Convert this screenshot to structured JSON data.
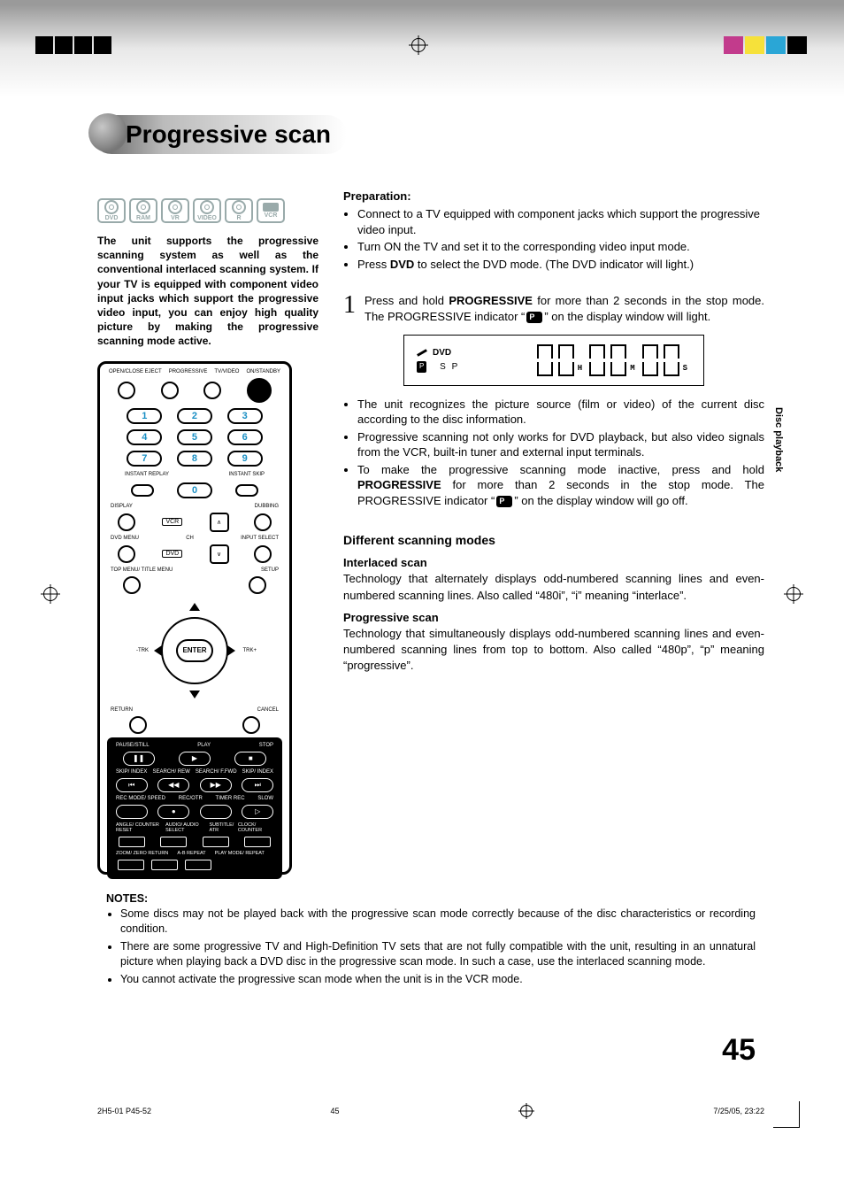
{
  "crop_colors": [
    "#c23b8c",
    "#f6e13a",
    "#2aa6d6",
    "#000000"
  ],
  "title": "Progressive scan",
  "disc_types": [
    "DVD",
    "RAM",
    "VR",
    "VIDEO",
    "R",
    "VCR"
  ],
  "intro": "The unit supports the progressive scanning system as well as the conventional interlaced scanning system. If your TV is equipped with component video input jacks which support the progressive video input, you can enjoy high quality picture by making the progressive scanning mode active.",
  "preparation_heading": "Preparation:",
  "preparation": [
    "Connect to a TV equipped with component jacks which support the progressive video input.",
    "Turn ON the TV and set it to the corresponding video input mode.",
    "Press <b>DVD</b> to select the DVD mode. (The DVD indicator will light.)"
  ],
  "step_num": "1",
  "step_text_a": "Press and hold ",
  "step_text_b": "PROGRESSIVE",
  "step_text_c": " for more than 2 seconds in the stop mode. The PROGRESSIVE indicator “",
  "step_text_d": "” on the display window will light.",
  "display": {
    "dvd": "DVD",
    "p": "P",
    "sp": "S P",
    "h": "H",
    "m": "M",
    "s": "S"
  },
  "after_bullets": [
    "The unit recognizes the picture source (film or video) of the current disc according to the disc information.",
    "Progressive scanning not only works for DVD playback, but also video signals from the VCR, built-in tuner and external input terminals.",
    "To make the progressive scanning mode inactive, press and hold <b>PROGRESSIVE</b> for more than 2 seconds in the stop mode. The PROGRESSIVE indicator “<span class='p-indicator'></span>” on the display window will go off."
  ],
  "modes_heading": "Different scanning modes",
  "interlaced_h": "Interlaced scan",
  "interlaced_p": "Technology that alternately displays odd-numbered scanning lines and even-numbered scanning lines. Also called “480i”, “i” meaning “interlace”.",
  "progressive_h": "Progressive scan",
  "progressive_p": "Technology that simultaneously displays odd-numbered scanning lines and even-numbered scanning lines from top to bottom. Also called “480p”, “p” meaning “progressive”.",
  "side_tab": "Disc playback",
  "notes_h": "NOTES:",
  "notes": [
    "Some discs may not be played back with the progressive scan mode correctly because of the disc characteristics or recording condition.",
    "There are some progressive TV and High-Definition TV sets that are not fully compatible with the unit, resulting in an unnatural picture when playing back a DVD disc in the progressive scan mode. In such a case, use the interlaced scanning mode.",
    "You cannot activate the progressive scan mode when the unit is in the VCR mode."
  ],
  "page_number": "45",
  "footer_left": "2H5-01 P45-52",
  "footer_mid": "45",
  "footer_right": "7/25/05, 23:22",
  "remote": {
    "hdr": [
      "OPEN/CLOSE EJECT",
      "PROGRESSIVE",
      "TV/VIDEO",
      "ON/STANDBY"
    ],
    "keypad": [
      "1",
      "2",
      "3",
      "4",
      "5",
      "6",
      "7",
      "8",
      "9",
      "0"
    ],
    "instant_l": "INSTANT REPLAY",
    "instant_r": "INSTANT SKIP",
    "display": "DISPLAY",
    "dubbing": "DUBBING",
    "vcr": "VCR",
    "dvd": "DVD",
    "dvdmenu": "DVD MENU",
    "ch": "CH",
    "input": "INPUT SELECT",
    "topmenu": "TOP MENU/ TITLE MENU",
    "setup": "SETUP",
    "enter": "ENTER",
    "trk_l": "-TRK",
    "trk_r": "TRK+",
    "return": "RETURN",
    "cancel": "CANCEL",
    "pause": "PAUSE/STILL",
    "play": "PLAY",
    "stop": "STOP",
    "skipi_l": "SKIP/ INDEX",
    "rew": "SEARCH/ REW",
    "ffwd": "SEARCH/ F.FWD",
    "skipi_r": "SKIP/ INDEX",
    "recmode": "REC MODE/ SPEED",
    "recotr": "REC/OTR",
    "timer": "TIMER REC",
    "slow": "SLOW",
    "angle": "ANGLE/ COUNTER RESET",
    "audio": "AUDIO/ AUDIO SELECT",
    "subtitle": "SUBTITLE/ ATR",
    "clock": "CLOCK/ COUNTER",
    "zoom": "ZOOM/ ZERO RETURN",
    "ab": "A-B REPEAT",
    "playmode": "PLAY MODE/ REPEAT"
  }
}
